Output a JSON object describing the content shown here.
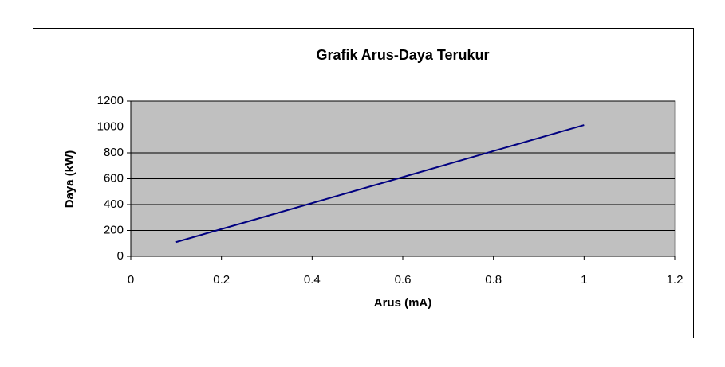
{
  "chart_data": {
    "type": "scatter-line",
    "title": "Grafik Arus-Daya Terukur",
    "x_label": "Arus (mA)",
    "y_label": "Daya (kW)",
    "x": [
      0.1,
      1
    ],
    "series": [
      {
        "name": "Daya",
        "color": "#000080",
        "values": [
          110,
          1015
        ]
      }
    ],
    "xlim": [
      0,
      1.2
    ],
    "xticks": [
      0,
      0.2,
      0.4,
      0.6,
      0.8,
      1,
      1.2
    ],
    "ylim": [
      0,
      1200
    ],
    "yticks": [
      0,
      200,
      400,
      600,
      800,
      1000,
      1200
    ],
    "grid": true,
    "plot_background": "#c0c0c0"
  }
}
